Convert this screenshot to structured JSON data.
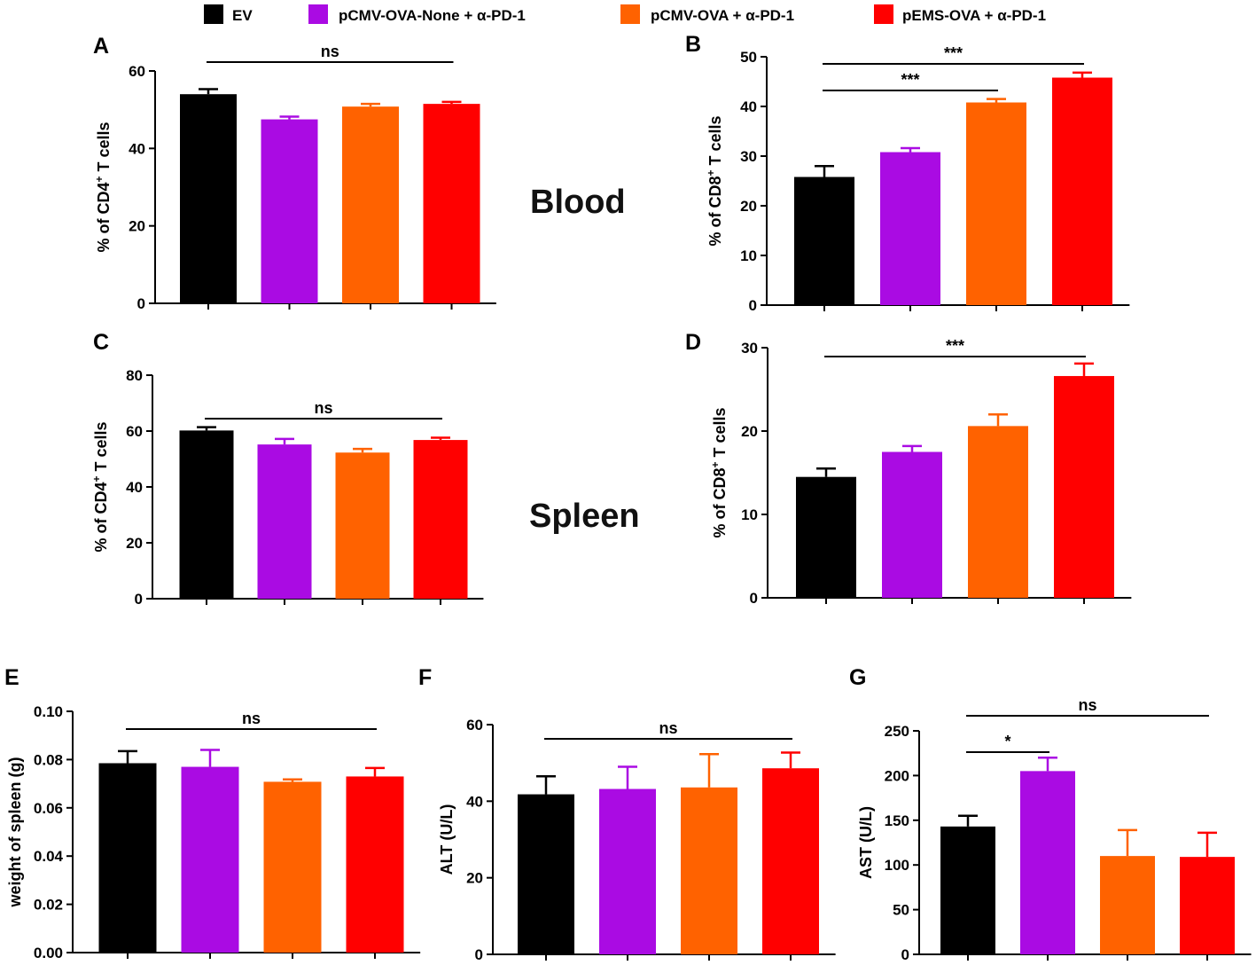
{
  "legend": [
    {
      "label": "EV",
      "color": "#000000"
    },
    {
      "label": "pCMV-OVA-None + α-PD-1",
      "color": "#AA0BE3"
    },
    {
      "label": "pCMV-OVA + α-PD-1",
      "color": "#FF6200"
    },
    {
      "label": "pEMS-OVA + α-PD-1",
      "color": "#FF0000"
    }
  ],
  "tissue_labels": {
    "blood": "Blood",
    "spleen": "Spleen"
  },
  "chart_data": [
    {
      "panel": "A",
      "type": "bar",
      "ylabel_main": "% of CD4",
      "ylabel_sup": "+",
      "ylabel_tail": " T cells",
      "yticks": [
        0,
        20,
        40,
        60
      ],
      "ylim": [
        0,
        60
      ],
      "values": [
        54.0,
        47.5,
        50.8,
        51.5
      ],
      "errors": [
        1.3,
        0.7,
        0.7,
        0.5
      ],
      "significance": [
        {
          "label": "ns",
          "from": 0,
          "to": 3
        }
      ]
    },
    {
      "panel": "B",
      "type": "bar",
      "ylabel_main": "% of CD8",
      "ylabel_sup": "+",
      "ylabel_tail": " T cells",
      "yticks": [
        0,
        10,
        20,
        30,
        40,
        50
      ],
      "ylim": [
        0,
        50
      ],
      "values": [
        25.8,
        30.8,
        40.8,
        45.8
      ],
      "errors": [
        2.2,
        0.8,
        0.7,
        1.0
      ],
      "significance": [
        {
          "label": "***",
          "from": 0,
          "to": 2
        },
        {
          "label": "***",
          "from": 0,
          "to": 3
        }
      ]
    },
    {
      "panel": "C",
      "type": "bar",
      "ylabel_main": "% of CD4",
      "ylabel_sup": "+",
      "ylabel_tail": " T cells",
      "yticks": [
        0,
        20,
        40,
        60,
        80
      ],
      "ylim": [
        0,
        80
      ],
      "values": [
        60.2,
        55.2,
        52.3,
        56.8
      ],
      "errors": [
        1.2,
        2.0,
        1.3,
        0.8
      ],
      "significance": [
        {
          "label": "ns",
          "from": 0,
          "to": 3
        }
      ]
    },
    {
      "panel": "D",
      "type": "bar",
      "ylabel_main": "% of CD8",
      "ylabel_sup": "+",
      "ylabel_tail": " T cells",
      "yticks": [
        0,
        10,
        20,
        30
      ],
      "ylim": [
        0,
        30
      ],
      "values": [
        14.5,
        17.5,
        20.6,
        26.6
      ],
      "errors": [
        1.0,
        0.7,
        1.4,
        1.5
      ],
      "significance": [
        {
          "label": "***",
          "from": 0,
          "to": 3
        }
      ]
    },
    {
      "panel": "E",
      "type": "bar",
      "ylabel_main": "weight of spleen (g)",
      "ylabel_sup": "",
      "ylabel_tail": "",
      "yticks": [
        "0.00",
        "0.02",
        "0.04",
        "0.06",
        "0.08",
        "0.10"
      ],
      "ylim": [
        0,
        0.1
      ],
      "values": [
        0.0785,
        0.077,
        0.0708,
        0.073
      ],
      "errors": [
        0.005,
        0.007,
        0.001,
        0.0035
      ],
      "significance": [
        {
          "label": "ns",
          "from": 0,
          "to": 3
        }
      ]
    },
    {
      "panel": "F",
      "type": "bar",
      "ylabel_main": "ALT (U/L)",
      "ylabel_sup": "",
      "ylabel_tail": "",
      "yticks": [
        0,
        20,
        40,
        60
      ],
      "ylim": [
        0,
        60
      ],
      "values": [
        41.8,
        43.2,
        43.6,
        48.6
      ],
      "errors": [
        4.7,
        5.8,
        8.7,
        4.1
      ],
      "significance": [
        {
          "label": "ns",
          "from": 0,
          "to": 3
        }
      ]
    },
    {
      "panel": "G",
      "type": "bar",
      "ylabel_main": "AST (U/L)",
      "ylabel_sup": "",
      "ylabel_tail": "",
      "yticks": [
        0,
        50,
        100,
        150,
        200,
        250
      ],
      "ylim": [
        0,
        250
      ],
      "values": [
        143,
        205,
        110,
        109
      ],
      "errors": [
        12,
        15,
        29,
        27
      ],
      "significance": [
        {
          "label": "*",
          "from": 0,
          "to": 1
        },
        {
          "label": "ns",
          "from": 0,
          "to": 3
        }
      ]
    }
  ]
}
